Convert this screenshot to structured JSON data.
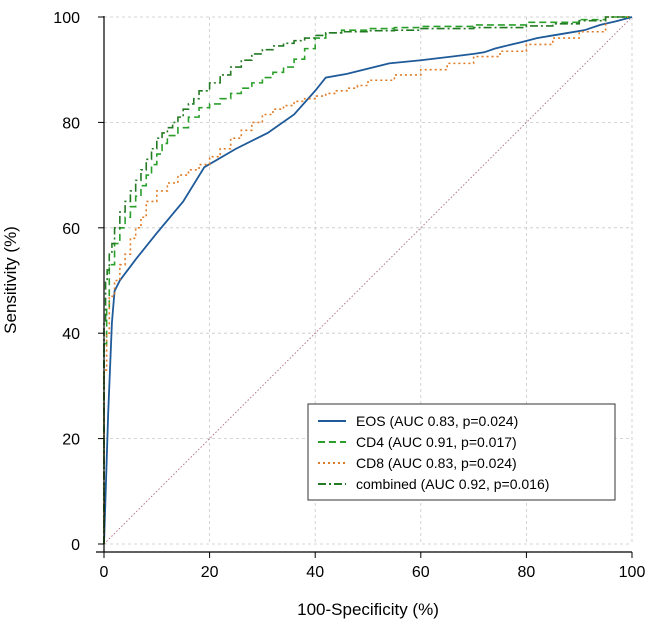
{
  "chart_data": {
    "type": "line",
    "title": "",
    "xlabel": "100-Specificity (%)",
    "ylabel": "Sensitivity (%)",
    "xlim": [
      0,
      100
    ],
    "ylim": [
      0,
      100
    ],
    "xticks": [
      "0",
      "20",
      "40",
      "60",
      "80",
      "100"
    ],
    "yticks": [
      "0",
      "20",
      "40",
      "60",
      "80",
      "100"
    ],
    "grid": true,
    "legend_position": "bottom-right",
    "reference_line": {
      "name": "chance",
      "x": [
        0,
        100
      ],
      "y": [
        0,
        100
      ],
      "color": "#b07890"
    },
    "series": [
      {
        "name": "EOS (AUC 0.83, p=0.024)",
        "color": "#1f5a99",
        "style": "solid",
        "x": [
          0,
          0.8,
          1.5,
          2,
          3,
          6,
          10,
          15,
          19,
          25,
          31,
          36,
          40,
          42,
          46,
          50,
          54,
          60,
          66,
          70,
          72,
          74,
          76,
          79,
          82,
          85,
          88,
          91,
          94,
          97,
          100
        ],
        "y": [
          0,
          25,
          42,
          48,
          50,
          54,
          59,
          65,
          71.5,
          75,
          78,
          81.5,
          86,
          88.5,
          89.2,
          90.2,
          91.2,
          91.8,
          92.5,
          93,
          93.3,
          94,
          94.5,
          95.2,
          96,
          96.5,
          97,
          97.5,
          98.5,
          99.2,
          100
        ]
      },
      {
        "name": "CD4 (AUC 0.91, p=0.017)",
        "color": "#2aa02a",
        "style": "dashed",
        "x": [
          0,
          0.5,
          1,
          2,
          3,
          4,
          5,
          6,
          7,
          8,
          9,
          10,
          11,
          12,
          14,
          16,
          18,
          20,
          22,
          24,
          26,
          28,
          30,
          32,
          34,
          36,
          38,
          40,
          42,
          45,
          50,
          55,
          60,
          70,
          80,
          90,
          95,
          100
        ],
        "y": [
          0,
          38,
          45,
          53,
          57,
          60,
          62,
          64,
          66,
          68,
          70,
          72,
          74,
          76,
          77.5,
          79,
          81,
          82.8,
          83.5,
          84.5,
          85.5,
          86.5,
          87.5,
          88.5,
          89.5,
          90.5,
          92,
          94,
          96,
          97,
          97.5,
          97.8,
          98,
          98.2,
          98.5,
          99,
          99.5,
          100
        ]
      },
      {
        "name": "CD8 (AUC 0.83, p=0.024)",
        "color": "#e07b25",
        "style": "dotted",
        "x": [
          0,
          0.5,
          1,
          2,
          3,
          4,
          5,
          6,
          7,
          8,
          10,
          12,
          14,
          16,
          18,
          20,
          22,
          24,
          26,
          28,
          30,
          32,
          34,
          36,
          38,
          40,
          42,
          44,
          46,
          48,
          50,
          55,
          60,
          65,
          70,
          75,
          80,
          85,
          90,
          95,
          100
        ],
        "y": [
          0,
          33,
          40,
          47,
          50,
          53,
          55,
          58,
          60,
          62,
          65,
          67,
          68.5,
          70,
          71,
          72,
          73.5,
          75,
          77,
          78.5,
          80,
          81.5,
          82.5,
          83.2,
          84,
          84.5,
          85,
          85.5,
          86,
          86.5,
          87,
          88,
          89,
          90,
          91.2,
          92.5,
          93.5,
          94.8,
          96,
          97.2,
          100
        ]
      },
      {
        "name": "combined (AUC 0.92, p=0.016)",
        "color": "#247a24",
        "style": "dashdot",
        "x": [
          0,
          0.3,
          0.6,
          1,
          1.5,
          2,
          3,
          4,
          5,
          6,
          7,
          8,
          9,
          10,
          11,
          12,
          13,
          14,
          15,
          16,
          17,
          18,
          20,
          22,
          24,
          26,
          28,
          30,
          32,
          34,
          36,
          38,
          40,
          42,
          45,
          50,
          55,
          60,
          70,
          80,
          85,
          90,
          95,
          100
        ],
        "y": [
          0,
          42,
          50,
          52,
          55,
          57,
          60,
          63,
          65,
          67,
          69,
          71,
          73,
          75,
          77,
          78,
          79,
          80,
          81,
          82.5,
          83.5,
          84.5,
          86,
          87.5,
          89,
          90.5,
          91.8,
          93,
          93.8,
          94.5,
          95,
          95.5,
          96,
          96.5,
          97,
          97.2,
          97.4,
          97.5,
          97.8,
          98,
          98.3,
          98.7,
          99.3,
          100
        ]
      }
    ]
  }
}
